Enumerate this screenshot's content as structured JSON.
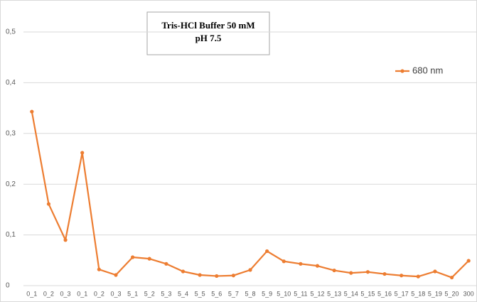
{
  "chart_data": {
    "type": "line",
    "title": "Tris-HCl Buffer 50 mM",
    "subtitle": "pH 7.5",
    "categories": [
      "0_1",
      "0_2",
      "0_3",
      "0_1",
      "0_2",
      "0_3",
      "5_1",
      "5_2",
      "5_3",
      "5_4",
      "5_5",
      "5_6",
      "5_7",
      "5_8",
      "5_9",
      "5_10",
      "5_11",
      "5_12",
      "5_13",
      "5_14",
      "5_15",
      "5_16",
      "5_17",
      "5_18",
      "5_19",
      "5_20",
      "300"
    ],
    "series": [
      {
        "name": "680 nm",
        "color": "#ed7d31",
        "values": [
          0.343,
          0.161,
          0.09,
          0.262,
          0.032,
          0.021,
          0.056,
          0.053,
          0.043,
          0.028,
          0.021,
          0.019,
          0.02,
          0.031,
          0.068,
          0.048,
          0.043,
          0.039,
          0.03,
          0.025,
          0.027,
          0.023,
          0.02,
          0.018,
          0.028,
          0.016,
          0.049
        ]
      }
    ],
    "ylim": [
      0,
      0.5
    ],
    "yticks": [
      0,
      {
        "value": 0.1,
        "label": "0,1"
      },
      {
        "value": 0.2,
        "label": "0,2"
      },
      {
        "value": 0.3,
        "label": "0,3"
      },
      {
        "value": 0.4,
        "label": "0,4"
      },
      {
        "value": 0.5,
        "label": "0,5"
      }
    ],
    "grid": true,
    "legend": "top-right"
  }
}
